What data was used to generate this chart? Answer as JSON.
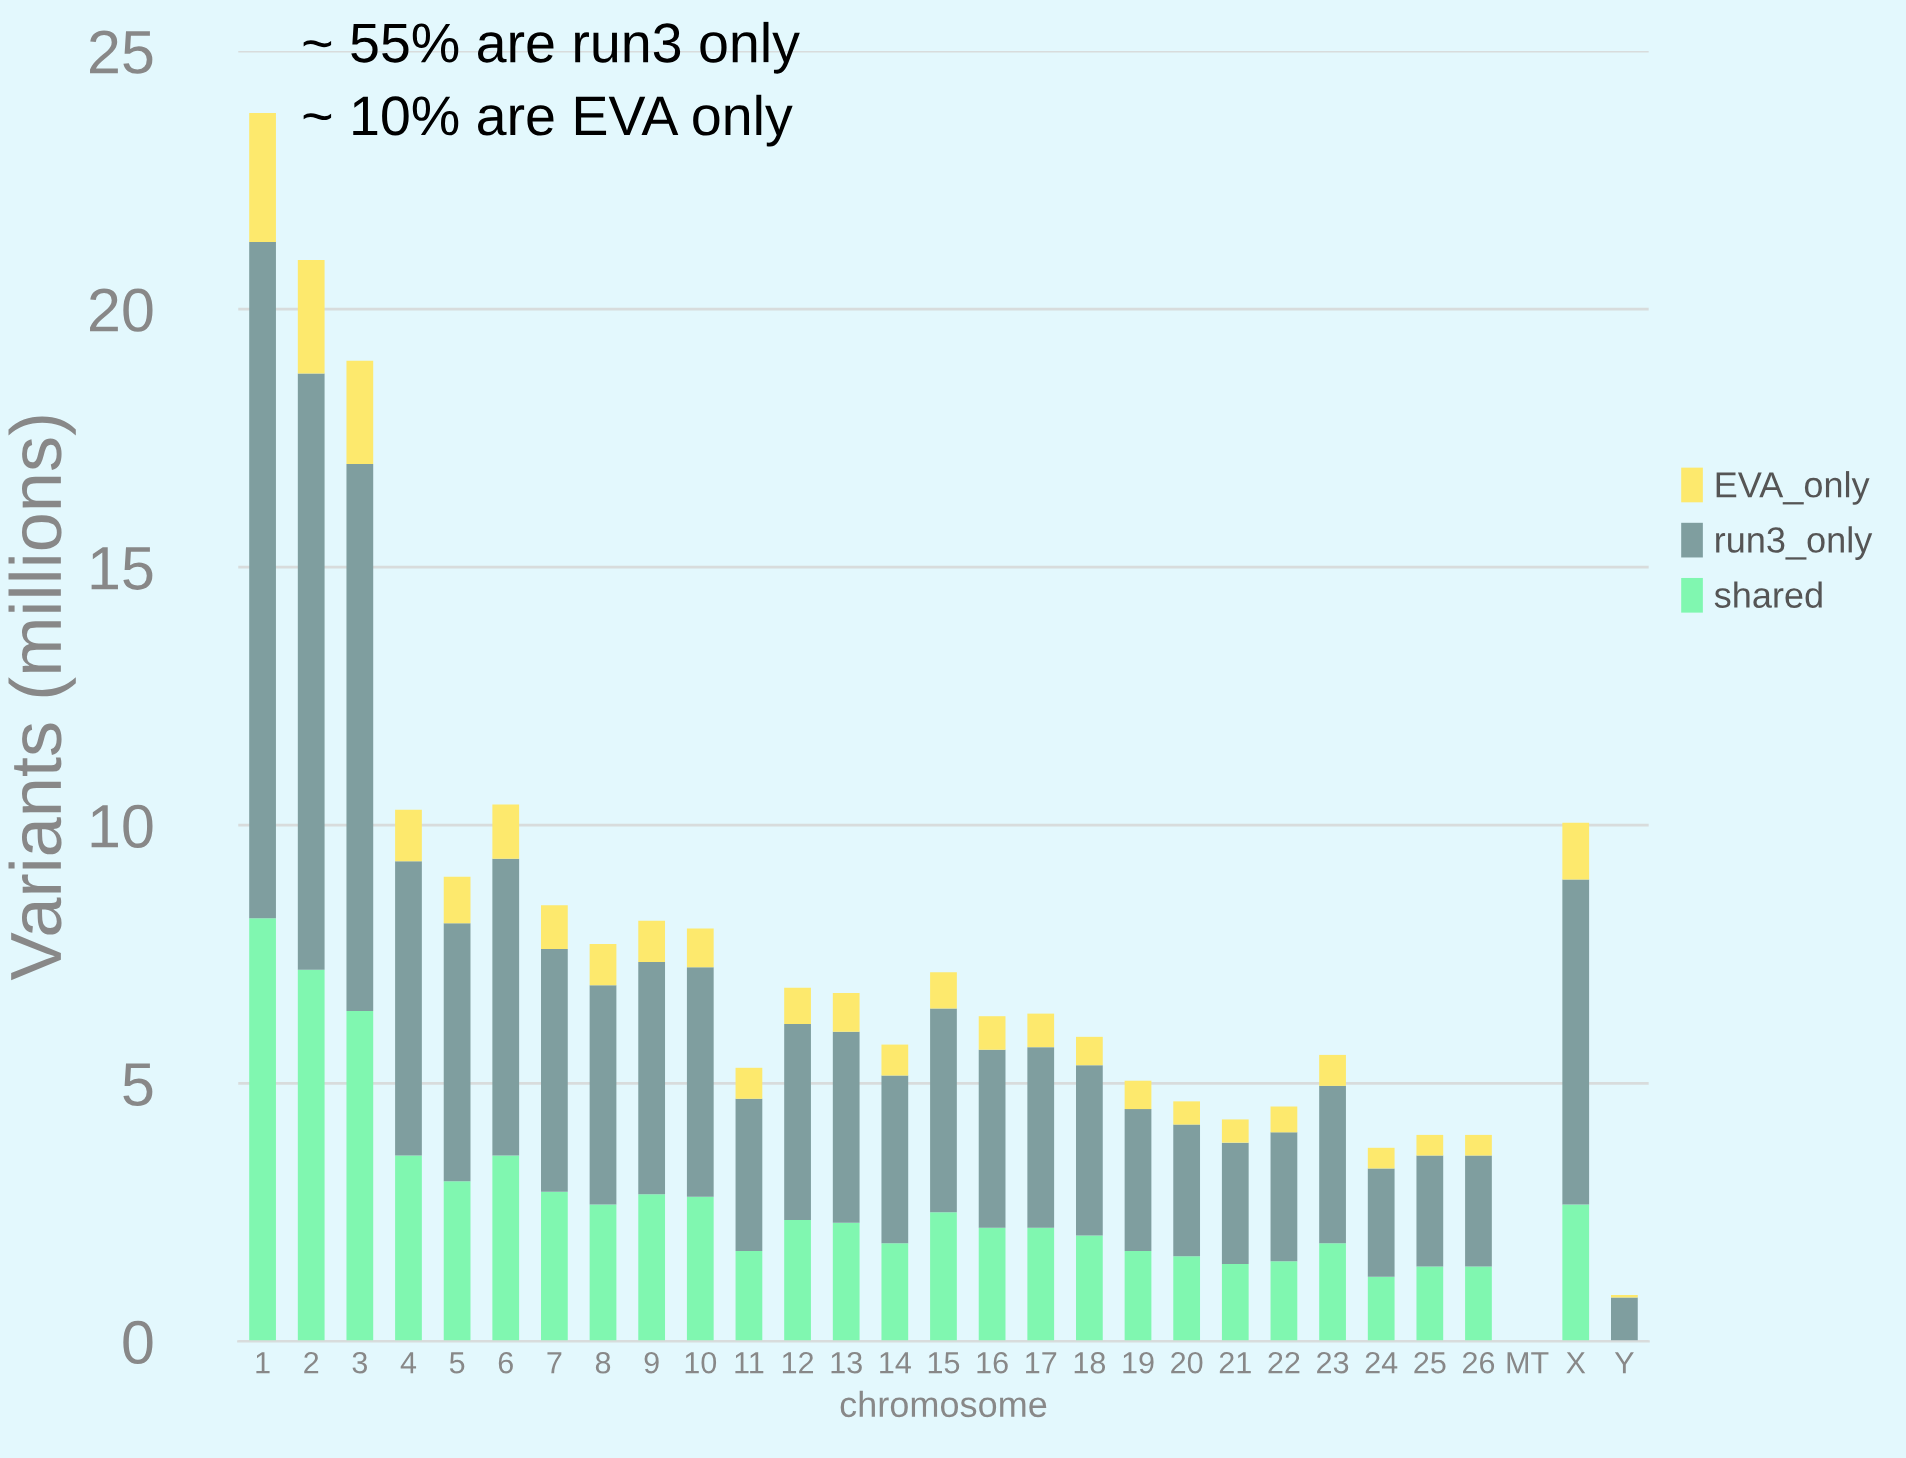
{
  "chart_data": {
    "type": "bar",
    "stacked": true,
    "ylabel": "Variants (millions)",
    "xlabel": "chromosome",
    "categories": [
      "1",
      "2",
      "3",
      "4",
      "5",
      "6",
      "7",
      "8",
      "9",
      "10",
      "11",
      "12",
      "13",
      "14",
      "15",
      "16",
      "17",
      "18",
      "19",
      "20",
      "21",
      "22",
      "23",
      "24",
      "25",
      "26",
      "MT",
      "X",
      "Y"
    ],
    "series": [
      {
        "name": "shared",
        "color": "#80f7b0",
        "values": [
          8.2,
          7.2,
          6.4,
          3.6,
          3.1,
          3.6,
          2.9,
          2.65,
          2.85,
          2.8,
          1.75,
          2.35,
          2.3,
          1.9,
          2.5,
          2.2,
          2.2,
          2.05,
          1.75,
          1.65,
          1.5,
          1.55,
          1.9,
          1.25,
          1.45,
          1.45,
          0,
          2.65,
          0
        ]
      },
      {
        "name": "run3_only",
        "color": "#7f9e9f",
        "values": [
          13.1,
          11.55,
          10.6,
          5.7,
          5.0,
          5.75,
          4.7,
          4.25,
          4.5,
          4.45,
          2.95,
          3.8,
          3.7,
          3.25,
          3.95,
          3.45,
          3.5,
          3.3,
          2.75,
          2.55,
          2.35,
          2.5,
          3.05,
          2.1,
          2.15,
          2.15,
          0,
          6.3,
          0.85
        ]
      },
      {
        "name": "EVA_only",
        "color": "#fde96d",
        "values": [
          2.5,
          2.2,
          2.0,
          1.0,
          0.9,
          1.05,
          0.85,
          0.8,
          0.8,
          0.75,
          0.6,
          0.7,
          0.75,
          0.6,
          0.7,
          0.65,
          0.65,
          0.55,
          0.55,
          0.45,
          0.45,
          0.5,
          0.6,
          0.4,
          0.4,
          0.4,
          0,
          1.1,
          0.05
        ]
      }
    ],
    "ylim": [
      0,
      25
    ],
    "yticks": [
      0,
      5,
      10,
      15,
      20,
      25
    ],
    "grid": "y",
    "legend": "right",
    "annotations": [
      "~ 55% are run3 only",
      "~ 10% are EVA only"
    ]
  }
}
